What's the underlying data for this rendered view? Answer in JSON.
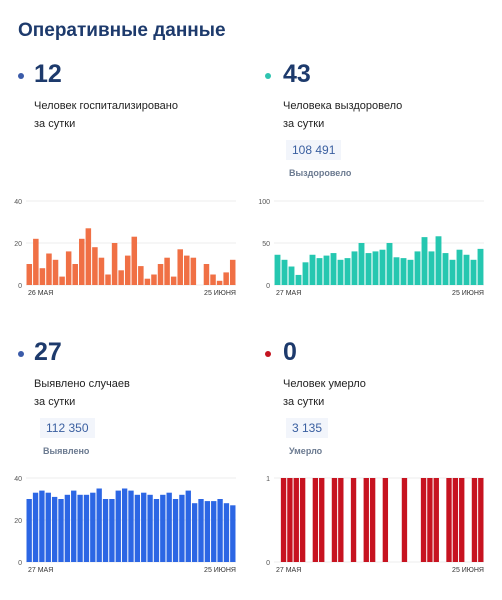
{
  "header": {
    "title": "Оперативные данные"
  },
  "panels": [
    {
      "id": "hospitalized",
      "value": "12",
      "line1": "Человек госпитализировано",
      "line2": "за сутки",
      "total": "",
      "total_label": "",
      "dot_color": "#3b5ba9",
      "bar_color": "#f07045"
    },
    {
      "id": "recovered",
      "value": "43",
      "line1": "Человека выздоровело",
      "line2": "за сутки",
      "total": "108 491",
      "total_label": "Выздоровело",
      "dot_color": "#2ec4b0",
      "bar_color": "#25c7b0"
    },
    {
      "id": "detected",
      "value": "27",
      "line1": "Выявлено случаев",
      "line2": "за сутки",
      "total": "112 350",
      "total_label": "Выявлено",
      "dot_color": "#3b5ba9",
      "bar_color": "#2c66e4"
    },
    {
      "id": "deaths",
      "value": "0",
      "line1": "Человек умерло",
      "line2": "за сутки",
      "total": "3 135",
      "total_label": "Умерло",
      "dot_color": "#c41420",
      "bar_color": "#c71320"
    }
  ],
  "chart_data": [
    {
      "type": "bar",
      "series_of": "hospitalized",
      "x_start_label": "26 МАЯ",
      "x_end_label": "25 ИЮНЯ",
      "y_ticks": [
        0,
        20,
        40
      ],
      "ylim": [
        0,
        40
      ],
      "values": [
        10,
        22,
        8,
        15,
        12,
        4,
        16,
        10,
        22,
        27,
        18,
        13,
        5,
        20,
        7,
        14,
        23,
        9,
        3,
        5,
        10,
        13,
        4,
        17,
        14,
        13,
        0,
        10,
        5,
        2,
        6,
        12
      ]
    },
    {
      "type": "bar",
      "series_of": "recovered",
      "x_start_label": "27 МАЯ",
      "x_end_label": "25 ИЮНЯ",
      "y_ticks": [
        0,
        50,
        100
      ],
      "ylim": [
        0,
        100
      ],
      "values": [
        36,
        30,
        22,
        12,
        27,
        36,
        32,
        35,
        38,
        30,
        32,
        40,
        50,
        38,
        40,
        42,
        50,
        33,
        32,
        30,
        40,
        57,
        40,
        58,
        38,
        30,
        42,
        36,
        30,
        43
      ]
    },
    {
      "type": "bar",
      "series_of": "detected",
      "x_start_label": "27 МАЯ",
      "x_end_label": "25 ИЮНЯ",
      "y_ticks": [
        0,
        20,
        40
      ],
      "ylim": [
        0,
        40
      ],
      "values": [
        30,
        33,
        34,
        33,
        31,
        30,
        32,
        34,
        32,
        32,
        33,
        35,
        30,
        30,
        34,
        35,
        34,
        32,
        33,
        32,
        30,
        32,
        33,
        30,
        32,
        34,
        28,
        30,
        29,
        29,
        30,
        28,
        27
      ]
    },
    {
      "type": "bar",
      "series_of": "deaths",
      "x_start_label": "27 МАЯ",
      "x_end_label": "25 ИЮНЯ",
      "y_ticks": [
        0,
        1
      ],
      "ylim": [
        0,
        1
      ],
      "values": [
        0,
        1,
        1,
        1,
        1,
        0,
        1,
        1,
        0,
        1,
        1,
        0,
        1,
        0,
        1,
        1,
        0,
        1,
        0,
        0,
        1,
        0,
        0,
        1,
        1,
        1,
        0,
        1,
        1,
        1,
        0,
        1,
        1
      ]
    }
  ]
}
